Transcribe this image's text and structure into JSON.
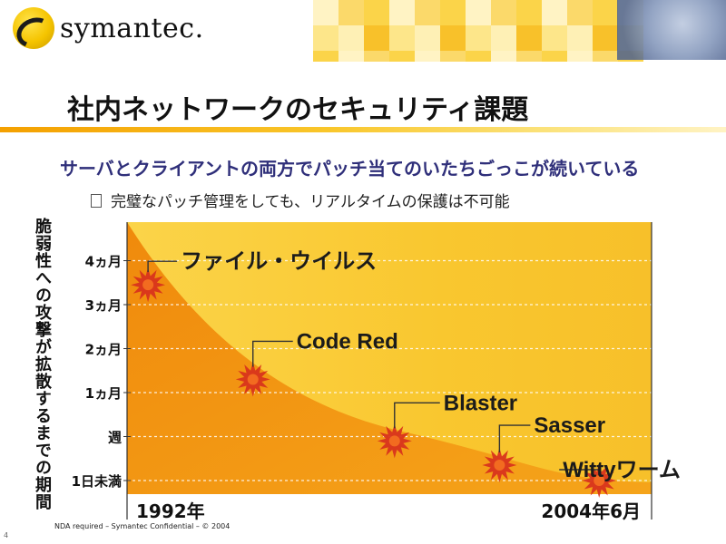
{
  "brand": {
    "name": "symantec."
  },
  "slide": {
    "title": "社内ネットワークのセキュリティ課題",
    "bullet_main": "サーバとクライアントの両方でパッチ当てのいたちごっこが続いている",
    "bullet_sub": "完璧なパッチ管理をしても、リアルタイムの保護は不可能"
  },
  "footer": {
    "text": "NDA required – Symantec Confidential – © 2004",
    "page_number": "4"
  },
  "colors": {
    "accent": "#f4a000",
    "curve_fill": "#f29a0e",
    "plot_bg": "#f9c72f",
    "burst": "#d8341c",
    "text_blue": "#2f2f7a"
  },
  "chart_data": {
    "type": "area",
    "title": "",
    "ylabel": "脆弱性への攻撃が拡散するまでの期間",
    "xlabel": "",
    "x_labels": [
      "1992年",
      "2004年6月"
    ],
    "y_ticks": [
      "1日未満",
      "週",
      "1ヵ月",
      "2ヵ月",
      "3ヵ月",
      "4ヵ月"
    ],
    "grid": true,
    "points": [
      {
        "label": "ファイル・ウイルス",
        "x": 0.04,
        "y": 4.45
      },
      {
        "label": "Code Red",
        "x": 0.24,
        "y": 2.3
      },
      {
        "label": "Blaster",
        "x": 0.51,
        "y": 0.9
      },
      {
        "label": "Sasser",
        "x": 0.71,
        "y": 0.35
      },
      {
        "label": "Wittyワーム",
        "x": 0.9,
        "y": 0.0
      }
    ]
  }
}
